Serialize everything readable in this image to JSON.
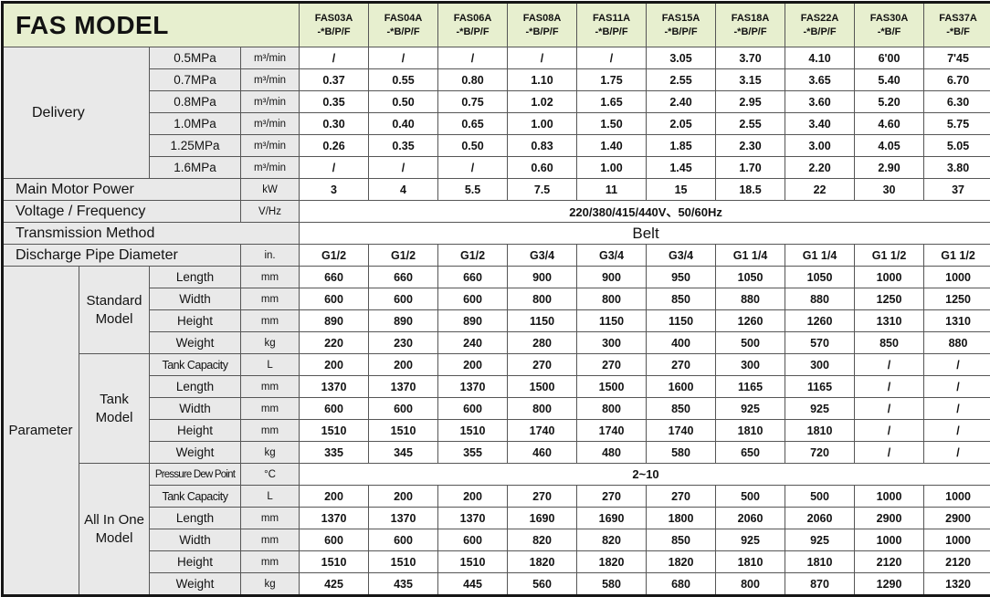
{
  "title": "FAS MODEL",
  "columns": [
    {
      "model": "FAS03A",
      "suffix": "-*B/P/F"
    },
    {
      "model": "FAS04A",
      "suffix": "-*B/P/F"
    },
    {
      "model": "FAS06A",
      "suffix": "-*B/P/F"
    },
    {
      "model": "FAS08A",
      "suffix": "-*B/P/F"
    },
    {
      "model": "FAS11A",
      "suffix": "-*B/P/F"
    },
    {
      "model": "FAS15A",
      "suffix": "-*B/P/F"
    },
    {
      "model": "FAS18A",
      "suffix": "-*B/P/F"
    },
    {
      "model": "FAS22A",
      "suffix": "-*B/P/F"
    },
    {
      "model": "FAS30A",
      "suffix": "-*B/F"
    },
    {
      "model": "FAS37A",
      "suffix": "-*B/F"
    }
  ],
  "delivery": {
    "label": "Delivery",
    "rows": [
      {
        "pressure": "0.5MPa",
        "unit": "m³/min",
        "values": [
          "/",
          "/",
          "/",
          "/",
          "/",
          "3.05",
          "3.70",
          "4.10",
          "6'00",
          "7'45"
        ]
      },
      {
        "pressure": "0.7MPa",
        "unit": "m³/min",
        "values": [
          "0.37",
          "0.55",
          "0.80",
          "1.10",
          "1.75",
          "2.55",
          "3.15",
          "3.65",
          "5.40",
          "6.70"
        ]
      },
      {
        "pressure": "0.8MPa",
        "unit": "m³/min",
        "values": [
          "0.35",
          "0.50",
          "0.75",
          "1.02",
          "1.65",
          "2.40",
          "2.95",
          "3.60",
          "5.20",
          "6.30"
        ]
      },
      {
        "pressure": "1.0MPa",
        "unit": "m³/min",
        "values": [
          "0.30",
          "0.40",
          "0.65",
          "1.00",
          "1.50",
          "2.05",
          "2.55",
          "3.40",
          "4.60",
          "5.75"
        ]
      },
      {
        "pressure": "1.25MPa",
        "unit": "m³/min",
        "values": [
          "0.26",
          "0.35",
          "0.50",
          "0.83",
          "1.40",
          "1.85",
          "2.30",
          "3.00",
          "4.05",
          "5.05"
        ]
      },
      {
        "pressure": "1.6MPa",
        "unit": "m³/min",
        "values": [
          "/",
          "/",
          "/",
          "0.60",
          "1.00",
          "1.45",
          "1.70",
          "2.20",
          "2.90",
          "3.80"
        ]
      }
    ]
  },
  "main_motor_power": {
    "label": "Main Motor Power",
    "unit": "kW",
    "values": [
      "3",
      "4",
      "5.5",
      "7.5",
      "11",
      "15",
      "18.5",
      "22",
      "30",
      "37"
    ]
  },
  "voltage_frequency": {
    "label": "Voltage / Frequency",
    "unit": "V/Hz",
    "value": "220/380/415/440V、50/60Hz"
  },
  "transmission_method": {
    "label": "Transmission Method",
    "value": "Belt"
  },
  "discharge_pipe_diameter": {
    "label": "Discharge Pipe Diameter",
    "unit": "in.",
    "values": [
      "G1/2",
      "G1/2",
      "G1/2",
      "G3/4",
      "G3/4",
      "G3/4",
      "G1 1/4",
      "G1 1/4",
      "G1 1/2",
      "G1 1/2"
    ]
  },
  "parameter": {
    "label": "Parameter",
    "groups": [
      {
        "name": "Standard Model",
        "rows": [
          {
            "label": "Length",
            "unit": "mm",
            "values": [
              "660",
              "660",
              "660",
              "900",
              "900",
              "950",
              "1050",
              "1050",
              "1000",
              "1000"
            ]
          },
          {
            "label": "Width",
            "unit": "mm",
            "values": [
              "600",
              "600",
              "600",
              "800",
              "800",
              "850",
              "880",
              "880",
              "1250",
              "1250"
            ]
          },
          {
            "label": "Height",
            "unit": "mm",
            "values": [
              "890",
              "890",
              "890",
              "1150",
              "1150",
              "1150",
              "1260",
              "1260",
              "1310",
              "1310"
            ]
          },
          {
            "label": "Weight",
            "unit": "kg",
            "values": [
              "220",
              "230",
              "240",
              "280",
              "300",
              "400",
              "500",
              "570",
              "850",
              "880"
            ]
          }
        ]
      },
      {
        "name": "Tank Model",
        "rows": [
          {
            "label": "Tank Capacity",
            "unit": "L",
            "values": [
              "200",
              "200",
              "200",
              "270",
              "270",
              "270",
              "300",
              "300",
              "/",
              "/"
            ]
          },
          {
            "label": "Length",
            "unit": "mm",
            "values": [
              "1370",
              "1370",
              "1370",
              "1500",
              "1500",
              "1600",
              "1165",
              "1165",
              "/",
              "/"
            ]
          },
          {
            "label": "Width",
            "unit": "mm",
            "values": [
              "600",
              "600",
              "600",
              "800",
              "800",
              "850",
              "925",
              "925",
              "/",
              "/"
            ]
          },
          {
            "label": "Height",
            "unit": "mm",
            "values": [
              "1510",
              "1510",
              "1510",
              "1740",
              "1740",
              "1740",
              "1810",
              "1810",
              "/",
              "/"
            ]
          },
          {
            "label": "Weight",
            "unit": "kg",
            "values": [
              "335",
              "345",
              "355",
              "460",
              "480",
              "580",
              "650",
              "720",
              "/",
              "/"
            ]
          }
        ]
      },
      {
        "name": "All In One Model",
        "rows": [
          {
            "label": "Pressure Dew Point",
            "unit": "°C",
            "merged_value": "2~10"
          },
          {
            "label": "Tank Capacity",
            "unit": "L",
            "values": [
              "200",
              "200",
              "200",
              "270",
              "270",
              "270",
              "500",
              "500",
              "1000",
              "1000"
            ]
          },
          {
            "label": "Length",
            "unit": "mm",
            "values": [
              "1370",
              "1370",
              "1370",
              "1690",
              "1690",
              "1800",
              "2060",
              "2060",
              "2900",
              "2900"
            ]
          },
          {
            "label": "Width",
            "unit": "mm",
            "values": [
              "600",
              "600",
              "600",
              "820",
              "820",
              "850",
              "925",
              "925",
              "1000",
              "1000"
            ]
          },
          {
            "label": "Height",
            "unit": "mm",
            "values": [
              "1510",
              "1510",
              "1510",
              "1820",
              "1820",
              "1820",
              "1810",
              "1810",
              "2120",
              "2120"
            ]
          },
          {
            "label": "Weight",
            "unit": "kg",
            "values": [
              "425",
              "435",
              "445",
              "560",
              "580",
              "680",
              "800",
              "870",
              "1290",
              "1320"
            ]
          }
        ]
      }
    ]
  },
  "colors": {
    "header_green": "#e7efcf",
    "label_gray": "#e9e9e9",
    "border": "#565656",
    "outer_border": "#161616",
    "text": "#121212"
  }
}
